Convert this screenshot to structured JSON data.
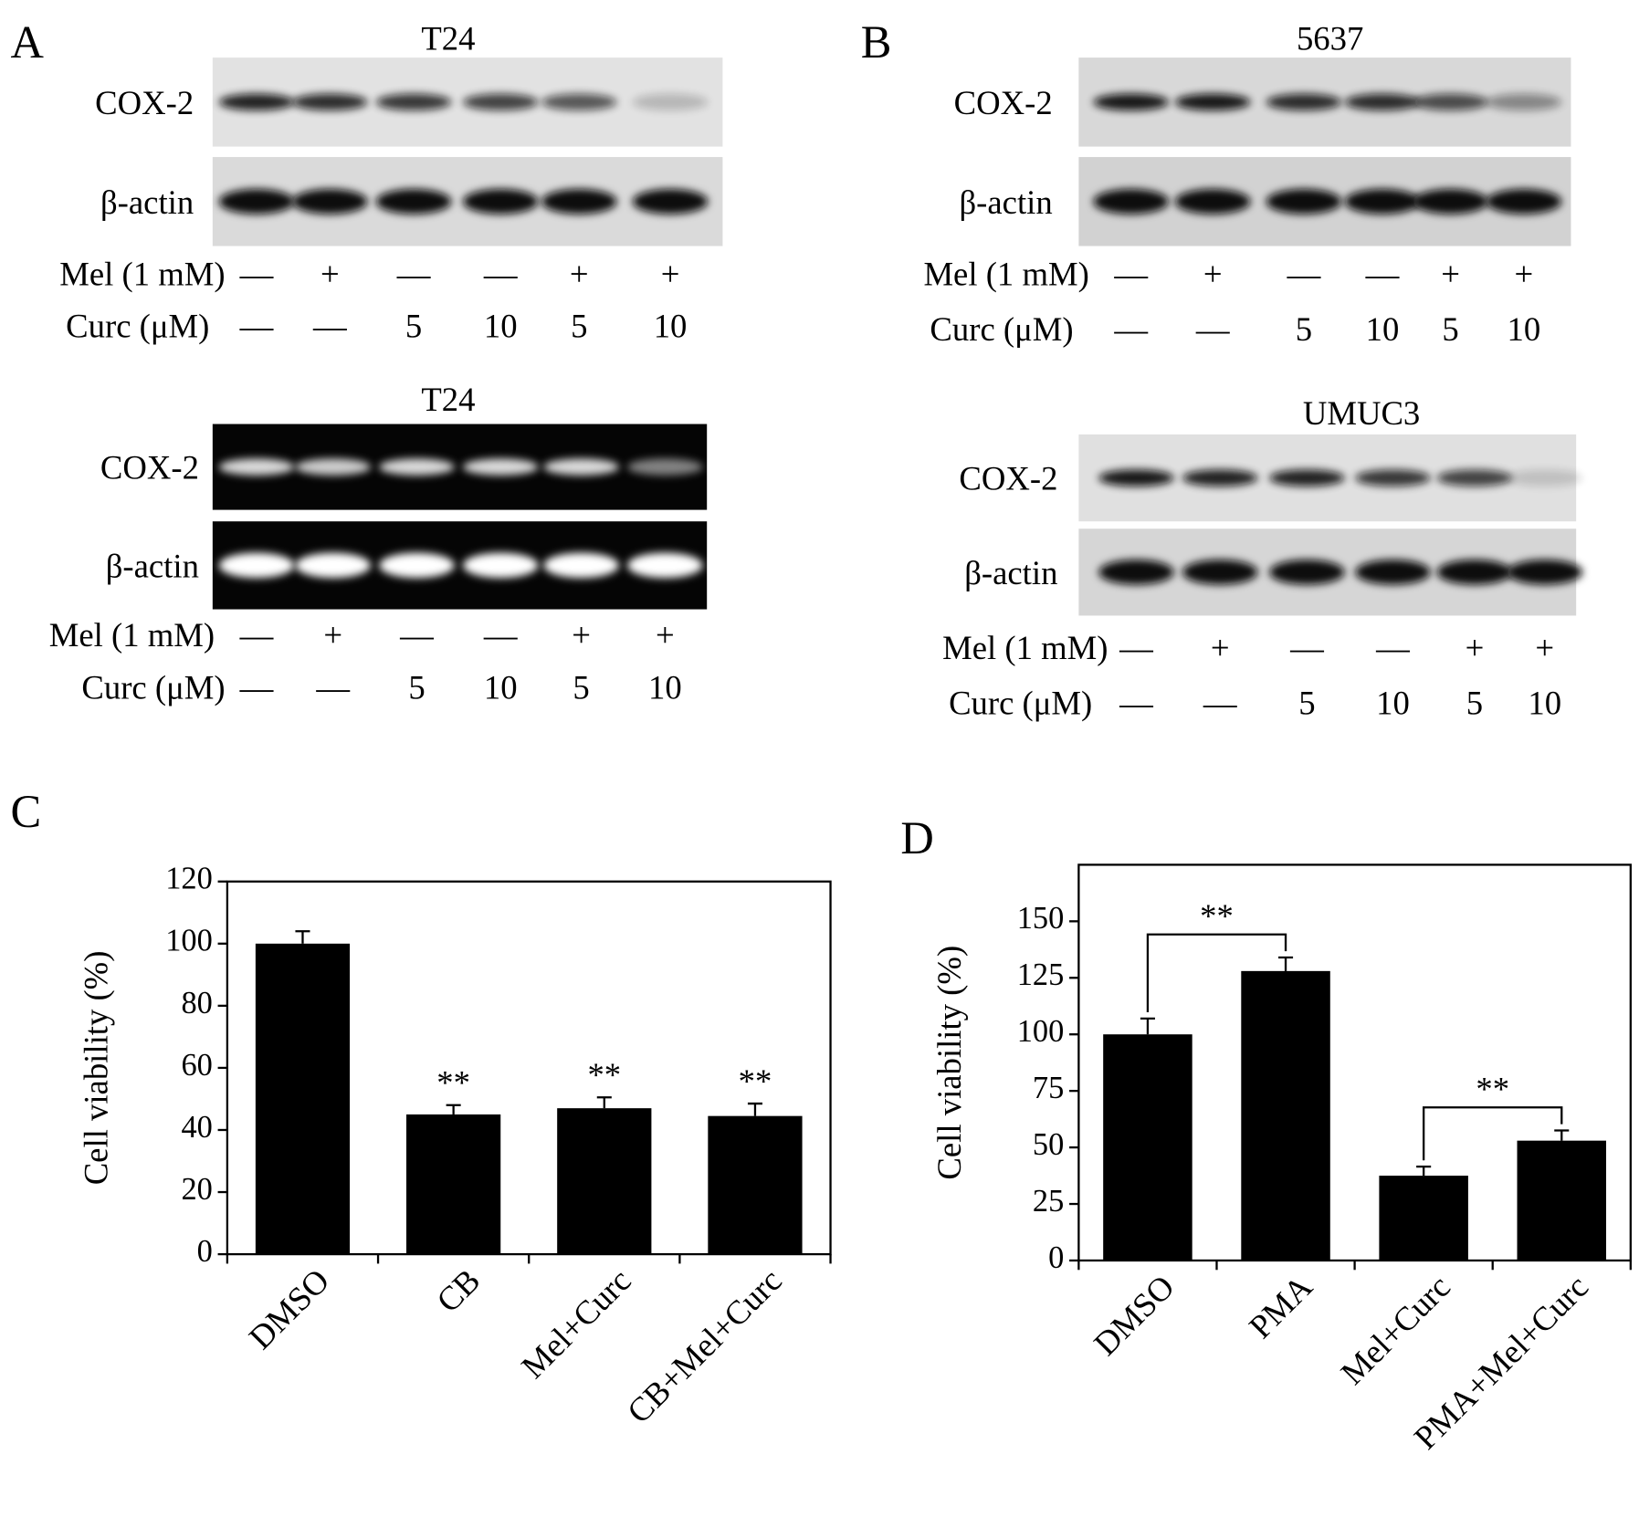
{
  "panels": [
    {
      "label": "A",
      "blots": [
        {
          "title": "T24",
          "rows": [
            "COX-2",
            "β-actin"
          ],
          "treatments": [
            {
              "label": "Mel (1 mM)",
              "values": [
                "—",
                "+",
                "—",
                "—",
                "+",
                "+"
              ]
            },
            {
              "label": "Curc (μM)",
              "values": [
                "—",
                "—",
                "5",
                "10",
                "5",
                "10"
              ]
            }
          ]
        },
        {
          "title": "T24",
          "rows": [
            "COX-2",
            "β-actin"
          ],
          "treatments": [
            {
              "label": "Mel (1 mM)",
              "values": [
                "—",
                "+",
                "—",
                "—",
                "+",
                "+"
              ]
            },
            {
              "label": "Curc (μM)",
              "values": [
                "—",
                "—",
                "5",
                "10",
                "5",
                "10"
              ]
            }
          ]
        }
      ]
    },
    {
      "label": "B",
      "blots": [
        {
          "title": "5637",
          "rows": [
            "COX-2",
            "β-actin"
          ],
          "treatments": [
            {
              "label": "Mel (1 mM)",
              "values": [
                "—",
                "+",
                "—",
                "—",
                "+",
                "+"
              ]
            },
            {
              "label": "Curc (μM)",
              "values": [
                "—",
                "—",
                "5",
                "10",
                "5",
                "10"
              ]
            }
          ]
        },
        {
          "title": "UMUC3",
          "rows": [
            "COX-2",
            "β-actin"
          ],
          "treatments": [
            {
              "label": "Mel (1 mM)",
              "values": [
                "—",
                "+",
                "—",
                "—",
                "+",
                "+"
              ]
            },
            {
              "label": "Curc (μM)",
              "values": [
                "—",
                "—",
                "5",
                "10",
                "5",
                "10"
              ]
            }
          ]
        }
      ]
    }
  ],
  "chart_data": [
    {
      "label": "C",
      "type": "bar",
      "y_label": "Cell viability (%)",
      "categories": [
        "DMSO",
        "CB",
        "Mel+Curc",
        "CB+Mel+Curc"
      ],
      "values": [
        100,
        45,
        47,
        44.5
      ],
      "errors": [
        4,
        3,
        3.5,
        4
      ],
      "annotations": [
        null,
        "**",
        "**",
        "**"
      ],
      "bracket": false,
      "color": "#000000",
      "ylim": [
        0,
        120
      ],
      "yticks": [
        0,
        20,
        40,
        60,
        80,
        100,
        120
      ]
    },
    {
      "label": "D",
      "type": "bar",
      "y_label": "Cell viability (%)",
      "categories": [
        "DMSO",
        "PMA",
        "Mel+Curc",
        "PMA+Mel+Curc"
      ],
      "values": [
        100,
        128,
        37.5,
        53
      ],
      "errors": [
        7,
        6,
        4,
        4.5
      ],
      "annotations": [
        null,
        "**",
        null,
        "**"
      ],
      "bracket": true,
      "color": "#000000",
      "ylim": [
        0,
        175
      ],
      "yticks": [
        0,
        25,
        50,
        75,
        100,
        125,
        150
      ]
    }
  ]
}
